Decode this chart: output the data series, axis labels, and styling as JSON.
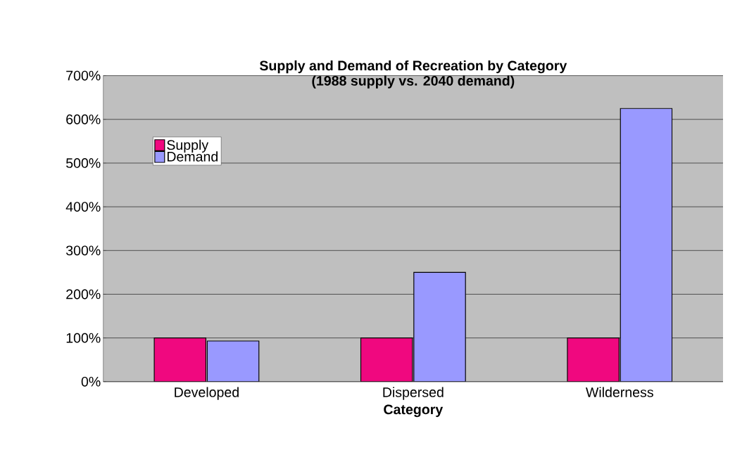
{
  "chart_data": {
    "type": "bar",
    "title": "Supply and Demand of Recreation by Category",
    "subtitle": "(1988 supply vs. 2040 demand)",
    "xlabel": "Category",
    "categories": [
      "Developed",
      "Dispersed",
      "Wilderness"
    ],
    "series": [
      {
        "name": "Supply",
        "color": "#f0087f",
        "values": [
          100,
          100,
          100
        ]
      },
      {
        "name": "Demand",
        "color": "#9999ff",
        "values": [
          93,
          250,
          625
        ]
      }
    ],
    "ylim": [
      0,
      700
    ],
    "yticks": [
      {
        "value": 0,
        "label": "0%"
      },
      {
        "value": 100,
        "label": "100%"
      },
      {
        "value": 200,
        "label": "200%"
      },
      {
        "value": 300,
        "label": "300%"
      },
      {
        "value": 400,
        "label": "400%"
      },
      {
        "value": 500,
        "label": "500%"
      },
      {
        "value": 600,
        "label": "600%"
      },
      {
        "value": 700,
        "label": "700%"
      }
    ],
    "grid": "y",
    "legend": "top left"
  }
}
